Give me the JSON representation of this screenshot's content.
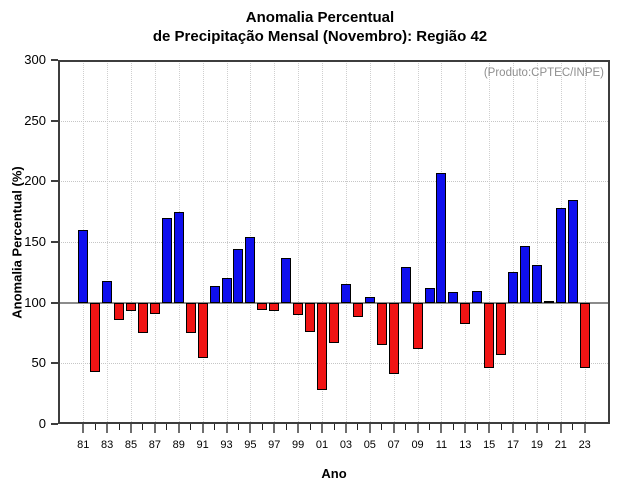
{
  "chart_data": {
    "type": "bar",
    "title_line1": "Anomalia Percentual",
    "title_line2": "de Precipitação Mensal (Novembro): Região 42",
    "annotation": "(Produto:CPTEC/INPE)",
    "xlabel": "Ano",
    "ylabel": "Anomalia Percentual (%)",
    "baseline": 100,
    "ylim": [
      0,
      300
    ],
    "ytick_step": 50,
    "grid": "dotted, horizontal every 50, vertical every labeled year",
    "x_label_note": "labels shown every 2 years (odd years 81-23)",
    "categories": [
      "81",
      "82",
      "83",
      "84",
      "85",
      "86",
      "87",
      "88",
      "89",
      "90",
      "91",
      "92",
      "93",
      "94",
      "95",
      "96",
      "97",
      "98",
      "99",
      "00",
      "01",
      "02",
      "03",
      "04",
      "05",
      "06",
      "07",
      "08",
      "09",
      "10",
      "11",
      "12",
      "13",
      "14",
      "15",
      "16",
      "17",
      "18",
      "19",
      "20",
      "21",
      "22",
      "23"
    ],
    "values": [
      160,
      43,
      118,
      86,
      93,
      75,
      91,
      170,
      175,
      75,
      54,
      114,
      120,
      144,
      154,
      94,
      93,
      137,
      90,
      76,
      28,
      67,
      115,
      88,
      105,
      65,
      41,
      129,
      62,
      112,
      207,
      109,
      82,
      110,
      46,
      57,
      125,
      147,
      131,
      101,
      178,
      185,
      46
    ],
    "bar_colors": {
      "above_baseline": "#0f0fee",
      "below_baseline": "#f01414"
    },
    "baseline_color": "#8c8c8c",
    "axis_color": "#3d3d3d",
    "annotation_color": "#8f8f8f"
  }
}
